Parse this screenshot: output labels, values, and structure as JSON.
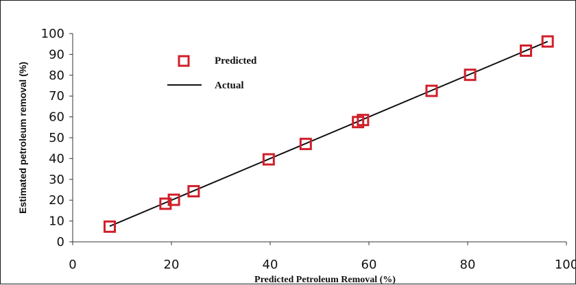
{
  "chart_data": {
    "type": "scatter",
    "title": "",
    "xlabel": "Predicted Petroleum Removal (%)",
    "ylabel": "Estimated petroleum removal (%)",
    "xlim": [
      0,
      100
    ],
    "ylim": [
      0,
      100
    ],
    "x_ticks": [
      "0",
      "20",
      "40",
      "60",
      "80",
      "100"
    ],
    "y_ticks": [
      "0",
      "10",
      "20",
      "30",
      "40",
      "50",
      "60",
      "70",
      "80",
      "90",
      "100"
    ],
    "grid": false,
    "legend_position": "top-left",
    "series": [
      {
        "name": "Predicted",
        "marker": "open-square",
        "color": "#d01f2a",
        "points": [
          {
            "x": 7.5,
            "y": 7.3
          },
          {
            "x": 18.8,
            "y": 18.3
          },
          {
            "x": 20.5,
            "y": 20.2
          },
          {
            "x": 24.5,
            "y": 24.3
          },
          {
            "x": 39.7,
            "y": 39.6
          },
          {
            "x": 47.2,
            "y": 47.0
          },
          {
            "x": 57.8,
            "y": 57.5
          },
          {
            "x": 58.8,
            "y": 58.5
          },
          {
            "x": 72.7,
            "y": 72.5
          },
          {
            "x": 80.5,
            "y": 80.2
          },
          {
            "x": 91.8,
            "y": 91.8
          },
          {
            "x": 96.2,
            "y": 96.2
          }
        ]
      },
      {
        "name": "Actual",
        "type": "line",
        "color": "#111111",
        "points": [
          {
            "x": 7.5,
            "y": 7.5
          },
          {
            "x": 96.2,
            "y": 96.2
          }
        ]
      }
    ]
  }
}
